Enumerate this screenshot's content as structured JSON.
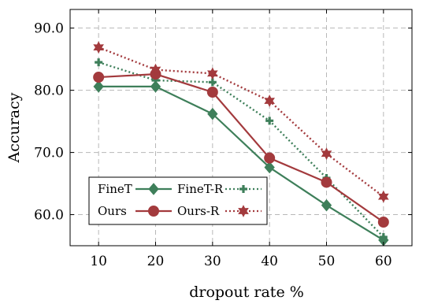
{
  "chart_data": {
    "type": "line",
    "xlabel": "dropout rate %",
    "ylabel": "Accuracy",
    "x": [
      10,
      20,
      30,
      40,
      50,
      60
    ],
    "xlim": [
      5,
      65
    ],
    "ylim": [
      55,
      93
    ],
    "xticks": [
      "10",
      "20",
      "30",
      "40",
      "50",
      "60"
    ],
    "yticks": [
      "60.0",
      "70.0",
      "80.0",
      "90.0"
    ],
    "ytick_values": [
      60,
      70,
      80,
      90
    ],
    "grid": true,
    "legend_position": "bottom-left",
    "series": [
      {
        "name": "FineT",
        "values": [
          80.6,
          80.6,
          76.2,
          67.6,
          61.5,
          55.9
        ],
        "color": "#3e7f5a",
        "style": "solid",
        "marker": "diamond"
      },
      {
        "name": "FineT-R",
        "values": [
          84.5,
          81.6,
          81.3,
          75.1,
          65.9,
          56.4
        ],
        "color": "#3e7f5a",
        "style": "dotted",
        "marker": "plus"
      },
      {
        "name": "Ours",
        "values": [
          82.1,
          82.6,
          79.7,
          69.1,
          65.2,
          58.8
        ],
        "color": "#a33a3d",
        "style": "solid",
        "marker": "circle"
      },
      {
        "name": "Ours-R",
        "values": [
          86.9,
          83.3,
          82.7,
          78.3,
          69.8,
          62.9
        ],
        "color": "#a33a3d",
        "style": "dotted",
        "marker": "star"
      }
    ]
  }
}
